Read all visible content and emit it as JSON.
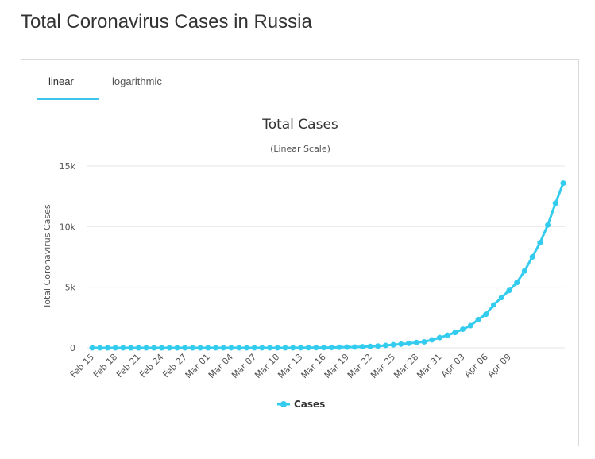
{
  "page": {
    "title": "Total Coronavirus Cases in Russia"
  },
  "tabs": [
    {
      "label": "linear",
      "active": true
    },
    {
      "label": "logarithmic",
      "active": false
    }
  ],
  "colors": {
    "accent": "#3ec6ec",
    "series": "#33ccee"
  },
  "chart_data": {
    "type": "line",
    "title": "Total Cases",
    "subtitle": "(Linear Scale)",
    "xlabel": "",
    "ylabel": "Total Coronavirus Cases",
    "ylim": [
      0,
      15000
    ],
    "yticks": [
      0,
      5000,
      10000,
      15000
    ],
    "ytick_labels": [
      "0",
      "5k",
      "10k",
      "15k"
    ],
    "grid": true,
    "legend": {
      "position": "bottom-center"
    },
    "x_tick_labels": [
      "Feb 15",
      "Feb 18",
      "Feb 21",
      "Feb 24",
      "Feb 27",
      "Mar 01",
      "Mar 04",
      "Mar 07",
      "Mar 10",
      "Mar 13",
      "Mar 16",
      "Mar 19",
      "Mar 22",
      "Mar 25",
      "Mar 28",
      "Mar 31",
      "Apr 03",
      "Apr 06",
      "Apr 09"
    ],
    "x_start": "Feb 15",
    "x_end": "Apr 12",
    "series": [
      {
        "name": "Cases",
        "values": [
          2,
          2,
          2,
          2,
          2,
          2,
          2,
          2,
          2,
          2,
          2,
          2,
          2,
          2,
          2,
          2,
          3,
          3,
          3,
          3,
          3,
          3,
          3,
          3,
          3,
          3,
          3,
          10,
          14,
          17,
          20,
          28,
          45,
          59,
          63,
          90,
          114,
          147,
          199,
          253,
          306,
          367,
          438,
          495,
          658,
          840,
          1036,
          1264,
          1534,
          1836,
          2337,
          2777,
          3548,
          4149,
          4731,
          5389,
          6343,
          7497,
          8672,
          10131,
          11917,
          13584
        ]
      }
    ]
  }
}
